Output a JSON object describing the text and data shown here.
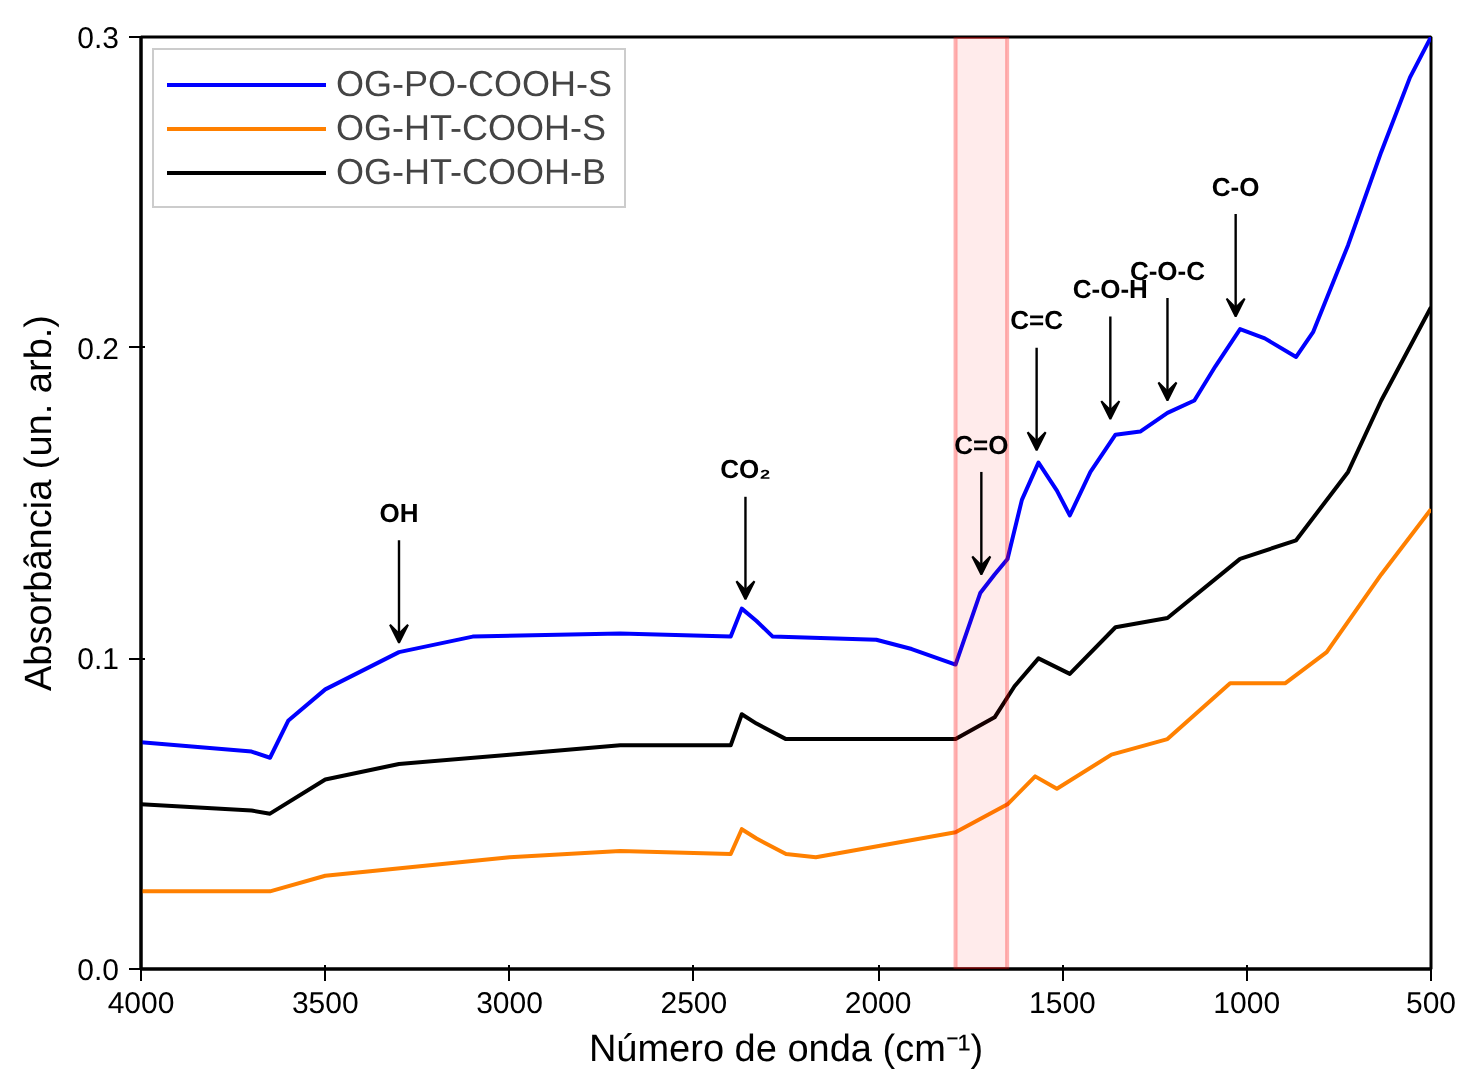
{
  "chart_data": {
    "type": "line",
    "xlabel": "Número de onda (cm⁻¹)",
    "ylabel": "Absorbância (un. arb.)",
    "xlim": [
      4000,
      500
    ],
    "ylim": [
      0,
      0.3
    ],
    "xticks": [
      4000,
      3500,
      3000,
      2500,
      2000,
      1500,
      1000,
      500
    ],
    "yticks": [
      {
        "value": 0,
        "label": "0.0"
      },
      0.1,
      0.2,
      0.3
    ],
    "grid": false,
    "legend": "top left",
    "line_style": "solid",
    "marker": "none",
    "series": [
      {
        "name": "OG-PO-COOH-S",
        "color": "#0000ff",
        "x": [
          4000,
          3700,
          3650,
          3600,
          3500,
          3300,
          3100,
          2700,
          2400,
          2370,
          2330,
          2286,
          2005,
          1909,
          1790,
          1723,
          1684,
          1649,
          1610,
          1565,
          1515,
          1480,
          1424,
          1356,
          1289,
          1215,
          1142,
          1085,
          1018,
          951,
          866,
          820,
          725,
          635,
          557,
          500
        ],
        "values": [
          0.073,
          0.07,
          0.068,
          0.08,
          0.09,
          0.102,
          0.107,
          0.108,
          0.107,
          0.116,
          0.112,
          0.107,
          0.106,
          0.103,
          0.098,
          0.121,
          0.127,
          0.132,
          0.151,
          0.163,
          0.154,
          0.146,
          0.16,
          0.172,
          0.173,
          0.179,
          0.183,
          0.194,
          0.206,
          0.203,
          0.197,
          0.205,
          0.233,
          0.263,
          0.287,
          0.3
        ]
      },
      {
        "name": "OG-HT-COOH-S",
        "color": "#ff8000",
        "x": [
          4000,
          3650,
          3500,
          3000,
          2700,
          2400,
          2370,
          2330,
          2250,
          2169,
          1790,
          1649,
          1574,
          1515,
          1367,
          1215,
          1045,
          895,
          783,
          635,
          500
        ],
        "values": [
          0.025,
          0.025,
          0.03,
          0.036,
          0.038,
          0.037,
          0.045,
          0.042,
          0.037,
          0.036,
          0.044,
          0.053,
          0.062,
          0.058,
          0.069,
          0.074,
          0.092,
          0.092,
          0.102,
          0.127,
          0.148
        ]
      },
      {
        "name": "OG-HT-COOH-B",
        "color": "#000000",
        "x": [
          4000,
          3700,
          3650,
          3500,
          3300,
          3000,
          2700,
          2400,
          2370,
          2330,
          2250,
          2005,
          1790,
          1684,
          1630,
          1565,
          1480,
          1356,
          1215,
          1018,
          866,
          725,
          635,
          500
        ],
        "values": [
          0.053,
          0.051,
          0.05,
          0.061,
          0.066,
          0.069,
          0.072,
          0.072,
          0.082,
          0.079,
          0.074,
          0.074,
          0.074,
          0.081,
          0.091,
          0.1,
          0.095,
          0.11,
          0.113,
          0.132,
          0.138,
          0.16,
          0.183,
          0.213
        ]
      }
    ],
    "bands": [
      {
        "axis": "x",
        "from": 1790,
        "to": 1650,
        "color": "#ff0000"
      }
    ],
    "annotations": [
      {
        "text": "OH",
        "x": 3300,
        "y": 0.103
      },
      {
        "text": "CO₂",
        "x": 2360,
        "y": 0.117
      },
      {
        "text": "C=O",
        "x": 1720,
        "y": 0.125
      },
      {
        "text": "C=C",
        "x": 1570,
        "y": 0.165
      },
      {
        "text": "C-O-H",
        "x": 1370,
        "y": 0.175
      },
      {
        "text": "C-O-C",
        "x": 1215,
        "y": 0.181
      },
      {
        "text": "C-O",
        "x": 1030,
        "y": 0.208
      }
    ]
  }
}
